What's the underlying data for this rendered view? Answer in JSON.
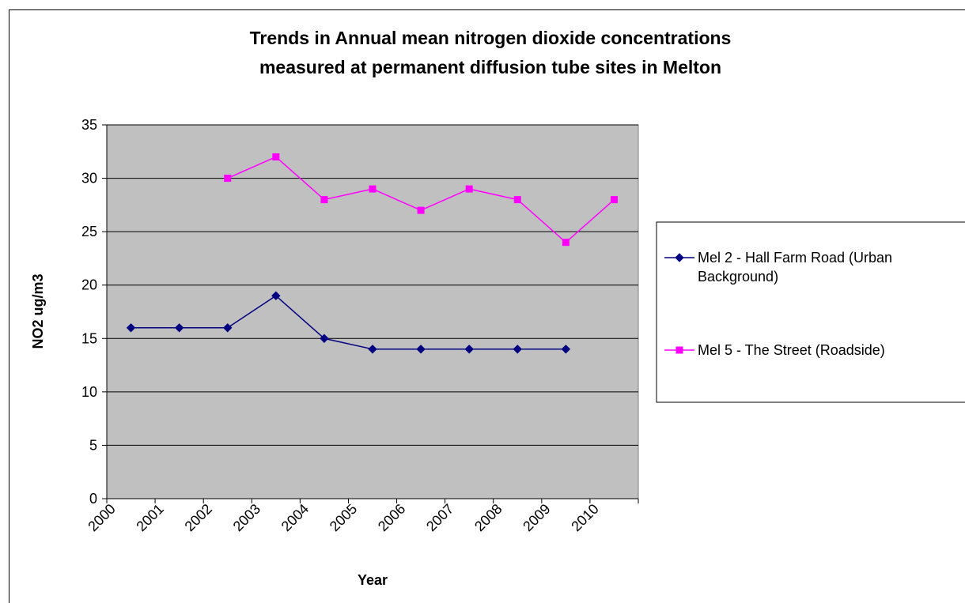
{
  "chart_data": {
    "type": "line",
    "title_lines": [
      "Trends in Annual mean nitrogen dioxide concentrations",
      "measured at permanent diffusion tube sites in Melton"
    ],
    "xlabel": "Year",
    "ylabel": "NO2 ug/m3",
    "categories": [
      "2000",
      "2001",
      "2002",
      "2003",
      "2004",
      "2005",
      "2006",
      "2007",
      "2008",
      "2009",
      "2010"
    ],
    "ylim": [
      0,
      35
    ],
    "yticks": [
      0,
      5,
      10,
      15,
      20,
      25,
      30,
      35
    ],
    "grid": true,
    "plot_background": "#c0c0c0",
    "legend_position": "right",
    "series": [
      {
        "name": "Mel 2 - Hall Farm Road (Urban Background)",
        "legend_lines": [
          "Mel 2 - Hall Farm Road (Urban",
          "Background)"
        ],
        "color": "#000080",
        "marker": "diamond",
        "values": [
          16,
          16,
          16,
          19,
          15,
          14,
          14,
          14,
          14,
          14,
          null
        ]
      },
      {
        "name": "Mel 5 - The Street (Roadside)",
        "legend_lines": [
          "Mel 5 - The Street (Roadside)"
        ],
        "color": "#ff00ff",
        "marker": "square",
        "values": [
          null,
          null,
          30,
          32,
          28,
          29,
          27,
          29,
          28,
          24,
          28
        ]
      }
    ]
  }
}
